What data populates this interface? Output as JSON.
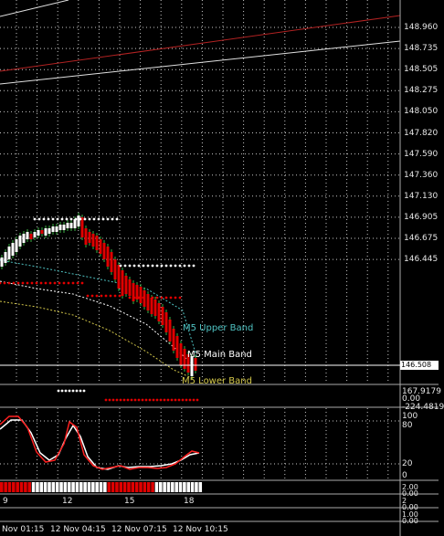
{
  "colors": {
    "background": "#000000",
    "grid": "#c8c8c8",
    "bull": "#ffffff",
    "bear": "#e00000",
    "green_wick": "#3cb043",
    "upper_band": "#4fc3c3",
    "main_band": "#ffffff",
    "lower_band": "#d4c84a",
    "trend_red": "#b22222",
    "stoch_main": "#ff2020",
    "stoch_signal": "#ffffff"
  },
  "price_axis": {
    "ticks": [
      "148.960",
      "148.735",
      "148.505",
      "148.275",
      "148.050",
      "147.820",
      "147.590",
      "147.360",
      "147.130",
      "146.905",
      "146.675",
      "146.445"
    ],
    "current_price": "146.508"
  },
  "indicator_window_1": {
    "ticks": [
      "167.9179",
      "0.00",
      "-224.4819"
    ]
  },
  "stochastic_window": {
    "ticks": [
      "100",
      "80",
      "20",
      "0"
    ]
  },
  "histogram_window": {
    "ticks": [
      "2.00",
      "0.00"
    ]
  },
  "window_4": {
    "ticks": [
      "2",
      "0.00"
    ]
  },
  "window_5": {
    "ticks": [
      "1.00",
      "0.00"
    ]
  },
  "band_labels": {
    "upper": "M5 Upper Band",
    "main": "M5 Main Band",
    "lower": "M5 Lower Band"
  },
  "hour_axis": {
    "labels": [
      "9",
      "12",
      "15",
      "18"
    ]
  },
  "time_axis": {
    "labels": [
      "Nov 01:15",
      "12 Nov 04:15",
      "12 Nov 07:15",
      "12 Nov 10:15"
    ]
  }
}
